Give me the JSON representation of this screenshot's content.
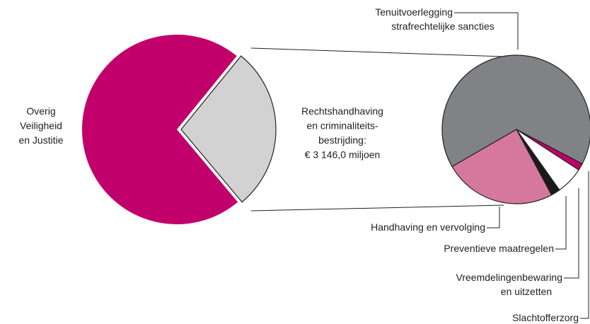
{
  "chart_data": [
    {
      "type": "pie",
      "categories": [
        [
          "Overig",
          "Veiligheid",
          "en Justitie"
        ],
        [
          "Rechtshandhaving",
          "en criminaliteits-",
          "bestrijding:",
          "€ 3 146,0 miljoen"
        ]
      ],
      "values": [
        72,
        28
      ],
      "colors": [
        "#c2006b",
        "#d2d2d2"
      ]
    },
    {
      "type": "pie",
      "categories": [
        [
          "Tenuitvoerlegging",
          "strafrechtelijke sancties"
        ],
        [
          "Slachtofferzorg"
        ],
        [
          "Vreemdelingenbewaring",
          "en uitzetten"
        ],
        [
          "Preventieve maatregelen"
        ],
        [
          "Handhaving en vervolging"
        ]
      ],
      "values": [
        66,
        1.5,
        6,
        2,
        24.5
      ],
      "colors": [
        "#808285",
        "#c2006b",
        "#ffffff",
        "#1a1a1a",
        "#d6779d"
      ]
    }
  ]
}
